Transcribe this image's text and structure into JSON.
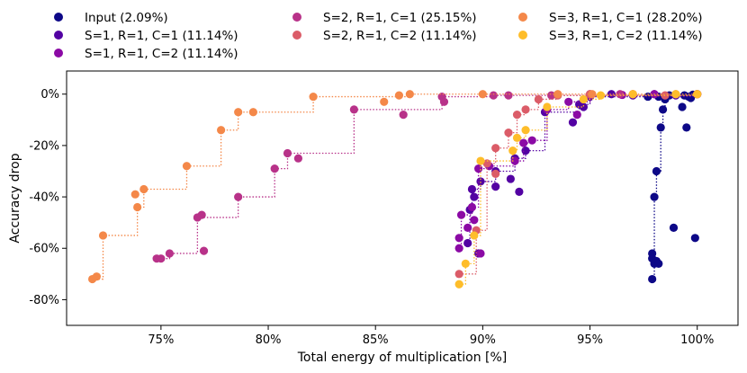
{
  "chart_data": {
    "type": "scatter",
    "xlabel": "Total energy of multiplication [%]",
    "ylabel": "Accuracy drop",
    "xlim": [
      70.6,
      101.9
    ],
    "ylim": [
      -90,
      9
    ],
    "xticks": [
      75,
      80,
      85,
      90,
      95,
      100
    ],
    "xtick_labels": [
      "75%",
      "80%",
      "85%",
      "90%",
      "95%",
      "100%"
    ],
    "yticks": [
      0,
      -20,
      -40,
      -60,
      -80
    ],
    "ytick_labels": [
      "0%",
      "-20%",
      "-40%",
      "-60%",
      "-80%"
    ],
    "legend_position": "top",
    "series": [
      {
        "name": "Input (2.09%)",
        "color": "#0d0887",
        "frontier": [
          [
            97.9,
            -72
          ],
          [
            98.0,
            -40
          ],
          [
            98.1,
            -30
          ],
          [
            98.3,
            -13
          ],
          [
            98.4,
            -6
          ],
          [
            98.5,
            -2
          ],
          [
            98.7,
            -0.5
          ],
          [
            100,
            0
          ]
        ],
        "points": [
          [
            97.9,
            -72
          ],
          [
            97.9,
            -62
          ],
          [
            97.9,
            -64
          ],
          [
            98.0,
            -66
          ],
          [
            98.1,
            -65
          ],
          [
            98.2,
            -66
          ],
          [
            98.0,
            -40
          ],
          [
            98.1,
            -30
          ],
          [
            98.3,
            -13
          ],
          [
            98.4,
            -6
          ],
          [
            98.5,
            -2
          ],
          [
            98.9,
            -52
          ],
          [
            99.3,
            -5
          ],
          [
            99.5,
            -13
          ],
          [
            99.9,
            -56
          ],
          [
            98.7,
            -0.5
          ],
          [
            99.0,
            -0.3
          ],
          [
            99.4,
            -0.5
          ],
          [
            99.8,
            -0.2
          ],
          [
            100,
            0
          ],
          [
            99.6,
            -1
          ],
          [
            99.7,
            -1.5
          ],
          [
            98.2,
            -1
          ],
          [
            97.7,
            -1
          ]
        ]
      },
      {
        "name": "S=1, R=1, C=1 (11.14%)",
        "color": "#5302a3",
        "frontier": [
          [
            89.3,
            -58
          ],
          [
            89.4,
            -45
          ],
          [
            89.5,
            -37
          ],
          [
            89.9,
            -34
          ],
          [
            90.6,
            -30
          ],
          [
            91.5,
            -25
          ],
          [
            92.0,
            -22
          ],
          [
            92.9,
            -7
          ],
          [
            94.5,
            -4
          ],
          [
            95.0,
            -1
          ],
          [
            100,
            0
          ]
        ],
        "points": [
          [
            89.3,
            -58
          ],
          [
            89.4,
            -45
          ],
          [
            89.5,
            -37
          ],
          [
            89.6,
            -40
          ],
          [
            89.8,
            -62
          ],
          [
            89.9,
            -34
          ],
          [
            90.6,
            -30
          ],
          [
            90.6,
            -36
          ],
          [
            91.3,
            -33
          ],
          [
            91.5,
            -25
          ],
          [
            91.7,
            -38
          ],
          [
            92.0,
            -22
          ],
          [
            92.9,
            -7
          ],
          [
            94.2,
            -11
          ],
          [
            94.5,
            -4
          ],
          [
            94.7,
            -5
          ],
          [
            95.0,
            -1
          ],
          [
            96.0,
            0
          ],
          [
            97.0,
            -0.5
          ],
          [
            98.0,
            0
          ],
          [
            99.0,
            -0.5
          ],
          [
            100,
            0
          ]
        ]
      },
      {
        "name": "S=1, R=1, C=2 (11.14%)",
        "color": "#8b0aa5",
        "frontier": [
          [
            88.9,
            -60
          ],
          [
            89.0,
            -47
          ],
          [
            89.5,
            -44
          ],
          [
            89.8,
            -29
          ],
          [
            90.3,
            -28
          ],
          [
            91.5,
            -26
          ],
          [
            91.9,
            -19
          ],
          [
            92.3,
            -18
          ],
          [
            93.0,
            -6
          ],
          [
            94.0,
            -3
          ],
          [
            95.0,
            -0.5
          ],
          [
            100,
            0
          ]
        ],
        "points": [
          [
            88.9,
            -60
          ],
          [
            88.9,
            -56
          ],
          [
            89.0,
            -47
          ],
          [
            89.3,
            -52
          ],
          [
            89.5,
            -44
          ],
          [
            89.6,
            -49
          ],
          [
            89.8,
            -29
          ],
          [
            89.9,
            -62
          ],
          [
            90.3,
            -28
          ],
          [
            91.5,
            -26
          ],
          [
            91.9,
            -19
          ],
          [
            92.3,
            -18
          ],
          [
            93.0,
            -6
          ],
          [
            94.0,
            -3
          ],
          [
            94.4,
            -8
          ],
          [
            95.0,
            -0.5
          ],
          [
            96.5,
            -0.3
          ],
          [
            98.0,
            0
          ],
          [
            100,
            0
          ]
        ]
      },
      {
        "name": "S=2, R=1, C=1 (25.15%)",
        "color": "#b83289",
        "frontier": [
          [
            74.8,
            -64
          ],
          [
            75.4,
            -62
          ],
          [
            76.7,
            -48
          ],
          [
            78.6,
            -40
          ],
          [
            80.3,
            -29
          ],
          [
            80.9,
            -23
          ],
          [
            84.0,
            -6
          ],
          [
            88.1,
            -1
          ],
          [
            90.5,
            -0.5
          ],
          [
            100,
            0
          ]
        ],
        "points": [
          [
            74.8,
            -64
          ],
          [
            75.0,
            -64
          ],
          [
            75.4,
            -62
          ],
          [
            76.7,
            -48
          ],
          [
            76.9,
            -47
          ],
          [
            77.0,
            -61
          ],
          [
            78.6,
            -40
          ],
          [
            80.3,
            -29
          ],
          [
            80.9,
            -23
          ],
          [
            81.4,
            -25
          ],
          [
            84.0,
            -6
          ],
          [
            86.3,
            -8
          ],
          [
            88.1,
            -1
          ],
          [
            88.2,
            -3
          ],
          [
            90.5,
            -0.5
          ],
          [
            91.2,
            -0.5
          ],
          [
            93.2,
            -0.5
          ],
          [
            95.0,
            0
          ],
          [
            96.4,
            0
          ],
          [
            100,
            0
          ]
        ]
      },
      {
        "name": "S=2, R=1, C=2 (11.14%)",
        "color": "#db5c68",
        "frontier": [
          [
            88.9,
            -70
          ],
          [
            89.7,
            -53
          ],
          [
            90.2,
            -27
          ],
          [
            90.6,
            -21
          ],
          [
            91.2,
            -15
          ],
          [
            91.6,
            -8
          ],
          [
            92.0,
            -6
          ],
          [
            92.6,
            -2
          ],
          [
            93.5,
            -0.5
          ],
          [
            100,
            0
          ]
        ],
        "points": [
          [
            88.9,
            -70
          ],
          [
            89.7,
            -53
          ],
          [
            90.2,
            -27
          ],
          [
            90.6,
            -21
          ],
          [
            90.6,
            -31
          ],
          [
            91.2,
            -15
          ],
          [
            91.6,
            -8
          ],
          [
            92.0,
            -6
          ],
          [
            92.6,
            -2
          ],
          [
            93.5,
            -0.5
          ],
          [
            95.0,
            0
          ],
          [
            97.0,
            0
          ],
          [
            98.5,
            -0.5
          ],
          [
            100,
            0
          ]
        ]
      },
      {
        "name": "S=3, R=1, C=1 (28.20%)",
        "color": "#f48849",
        "frontier": [
          [
            71.8,
            -72
          ],
          [
            72.3,
            -55
          ],
          [
            73.9,
            -44
          ],
          [
            74.2,
            -37
          ],
          [
            76.2,
            -28
          ],
          [
            77.8,
            -14
          ],
          [
            78.6,
            -7
          ],
          [
            82.1,
            -1
          ],
          [
            86.6,
            0
          ],
          [
            100,
            0
          ]
        ],
        "points": [
          [
            71.8,
            -72
          ],
          [
            72.0,
            -71
          ],
          [
            72.3,
            -55
          ],
          [
            73.8,
            -39
          ],
          [
            73.9,
            -44
          ],
          [
            74.2,
            -37
          ],
          [
            76.2,
            -28
          ],
          [
            77.8,
            -14
          ],
          [
            78.6,
            -7
          ],
          [
            79.3,
            -7
          ],
          [
            82.1,
            -1
          ],
          [
            85.4,
            -3
          ],
          [
            86.1,
            -0.5
          ],
          [
            86.6,
            0
          ],
          [
            90.0,
            0
          ],
          [
            93.5,
            0
          ],
          [
            95.1,
            0
          ],
          [
            97.0,
            0
          ],
          [
            99.0,
            0
          ],
          [
            100,
            0
          ]
        ]
      },
      {
        "name": "S=3, R=1, C=2 (11.14%)",
        "color": "#febd2a",
        "frontier": [
          [
            88.9,
            -74
          ],
          [
            89.2,
            -66
          ],
          [
            89.6,
            -55
          ],
          [
            89.9,
            -26
          ],
          [
            91.4,
            -22
          ],
          [
            91.6,
            -17
          ],
          [
            92.0,
            -14
          ],
          [
            93.0,
            -5
          ],
          [
            94.7,
            -2
          ],
          [
            95.5,
            -0.5
          ],
          [
            100,
            0
          ]
        ],
        "points": [
          [
            88.9,
            -74
          ],
          [
            89.2,
            -66
          ],
          [
            89.6,
            -55
          ],
          [
            89.9,
            -26
          ],
          [
            91.4,
            -22
          ],
          [
            91.6,
            -17
          ],
          [
            92.0,
            -14
          ],
          [
            93.0,
            -5
          ],
          [
            94.7,
            -2
          ],
          [
            95.5,
            -0.5
          ],
          [
            97.0,
            0
          ],
          [
            99.0,
            0
          ],
          [
            100,
            0
          ]
        ]
      }
    ]
  }
}
